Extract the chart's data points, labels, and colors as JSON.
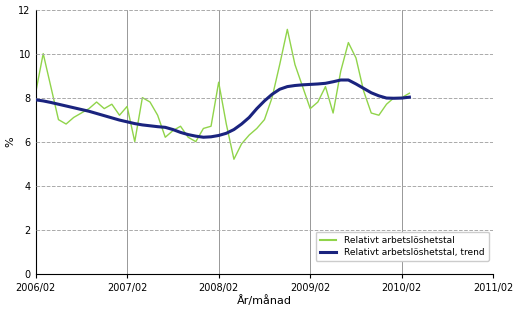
{
  "ylabel": "%",
  "xlabel": "År/månad",
  "ylim": [
    0,
    12
  ],
  "yticks": [
    0,
    2,
    4,
    6,
    8,
    10,
    12
  ],
  "xtick_labels": [
    "2006/02",
    "2007/02",
    "2008/02",
    "2009/02",
    "2010/02",
    "2011/02"
  ],
  "background_color": "#ffffff",
  "grid_color": "#aaaaaa",
  "line_color_raw": "#90d44a",
  "line_color_trend": "#1a237e",
  "legend_labels": [
    "Relativt arbetslöshetstal",
    "Relativt arbetslöshetstal, trend"
  ],
  "raw_values": [
    8.2,
    10.0,
    8.5,
    7.0,
    6.8,
    7.1,
    7.3,
    7.5,
    7.8,
    7.5,
    7.7,
    7.2,
    7.6,
    6.0,
    8.0,
    7.8,
    7.2,
    6.2,
    6.5,
    6.7,
    6.2,
    6.0,
    6.6,
    6.7,
    8.7,
    6.8,
    5.2,
    5.9,
    6.3,
    6.6,
    7.0,
    8.0,
    9.5,
    11.1,
    9.5,
    8.5,
    7.5,
    7.8,
    8.5,
    7.3,
    9.2,
    10.5,
    9.8,
    8.3,
    7.3,
    7.2,
    7.7,
    8.0,
    8.0,
    8.2
  ],
  "trend_values": [
    7.9,
    7.85,
    7.78,
    7.7,
    7.62,
    7.54,
    7.46,
    7.38,
    7.28,
    7.18,
    7.08,
    6.98,
    6.9,
    6.82,
    6.76,
    6.72,
    6.68,
    6.65,
    6.55,
    6.42,
    6.32,
    6.25,
    6.2,
    6.22,
    6.28,
    6.38,
    6.55,
    6.8,
    7.1,
    7.5,
    7.85,
    8.15,
    8.38,
    8.5,
    8.55,
    8.58,
    8.6,
    8.62,
    8.65,
    8.72,
    8.8,
    8.8,
    8.62,
    8.42,
    8.22,
    8.08,
    7.98,
    7.97,
    7.98,
    8.02
  ],
  "n_points": 50,
  "vline_indices": [
    0,
    12,
    24,
    36,
    48
  ]
}
